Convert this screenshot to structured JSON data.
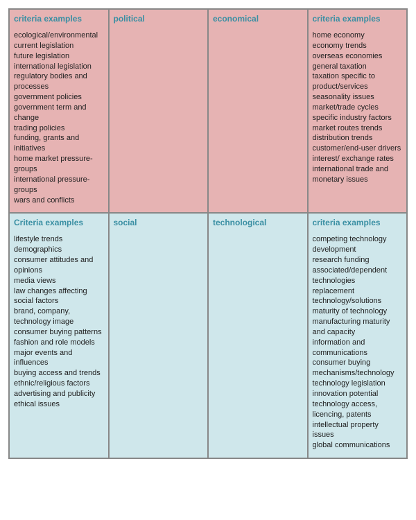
{
  "rows": [
    {
      "cells": [
        {
          "header": "criteria examples",
          "items": [
            "ecological/environmental current legislation",
            "future legislation",
            "international legislation",
            "regulatory bodies and processes",
            "government policies",
            "government term and change",
            "trading policies",
            "funding, grants and initiatives",
            "home market pressure- groups",
            "international pressure- groups",
            "wars and conflicts"
          ]
        },
        {
          "header": "political",
          "items": []
        },
        {
          "header": "economical",
          "items": []
        },
        {
          "header": "criteria examples",
          "items": [
            "home economy",
            "economy trends",
            "overseas economies",
            "general taxation",
            "taxation specific to product/services",
            "seasonality issues",
            "market/trade cycles",
            "specific industry factors",
            "market routes trends",
            "distribution trends",
            "customer/end-user drivers",
            "interest/ exchange rates",
            "international trade and monetary issues"
          ]
        }
      ]
    },
    {
      "cells": [
        {
          "header": "Criteria examples",
          "items": [
            "lifestyle trends",
            "demographics",
            "consumer attitudes and opinions",
            "media views",
            "law changes affecting social factors",
            "brand, company, technology image",
            "consumer buying patterns",
            "fashion and role models",
            "major events and influences",
            "buying access and trends",
            "ethnic/religious factors",
            "advertising and publicity",
            "ethical issues"
          ]
        },
        {
          "header": "social",
          "items": []
        },
        {
          "header": "technological",
          "items": []
        },
        {
          "header": "criteria examples",
          "items": [
            "competing technology development",
            "research funding",
            "associated/dependent technologies",
            "replacement technology/solutions",
            "maturity of technology",
            "manufacturing maturity and capacity",
            "information and communications",
            "consumer buying mechanisms/technology",
            "technology legislation",
            "innovation potential",
            "technology access, licencing, patents",
            "intellectual property issues",
            "global communications"
          ]
        }
      ]
    }
  ]
}
